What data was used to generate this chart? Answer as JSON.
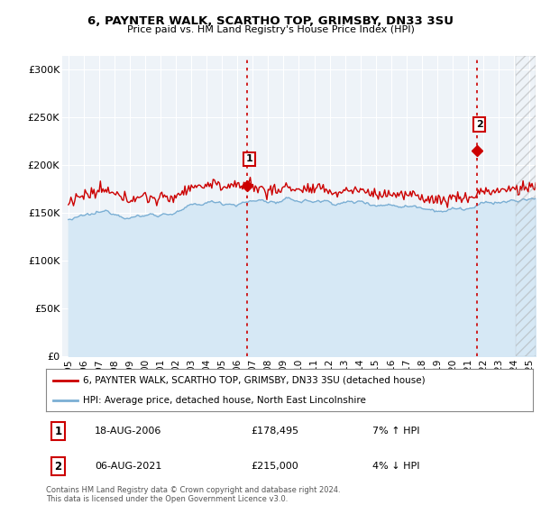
{
  "title_line1": "6, PAYNTER WALK, SCARTHO TOP, GRIMSBY, DN33 3SU",
  "title_line2": "Price paid vs. HM Land Registry's House Price Index (HPI)",
  "ylabel_ticks": [
    "£0",
    "£50K",
    "£100K",
    "£150K",
    "£200K",
    "£250K",
    "£300K"
  ],
  "ytick_values": [
    0,
    50000,
    100000,
    150000,
    200000,
    250000,
    300000
  ],
  "ylim": [
    0,
    315000
  ],
  "x_start_year": 1995,
  "x_end_year": 2025,
  "xlim_left": 1994.6,
  "xlim_right": 2025.4,
  "point1_x": 2006.63,
  "point1_y": 178495,
  "point1_label": "1",
  "point1_date": "18-AUG-2006",
  "point1_price": "£178,495",
  "point1_hpi": "7% ↑ HPI",
  "point2_x": 2021.59,
  "point2_y": 215000,
  "point2_label": "2",
  "point2_date": "06-AUG-2021",
  "point2_price": "£215,000",
  "point2_hpi": "4% ↓ HPI",
  "hatch_start": 2024.0,
  "legend_line1": "6, PAYNTER WALK, SCARTHO TOP, GRIMSBY, DN33 3SU (detached house)",
  "legend_line2": "HPI: Average price, detached house, North East Lincolnshire",
  "footer": "Contains HM Land Registry data © Crown copyright and database right 2024.\nThis data is licensed under the Open Government Licence v3.0.",
  "house_color": "#cc0000",
  "hpi_color": "#7bafd4",
  "hpi_fill_color": "#d6e8f5",
  "vline_color": "#cc0000",
  "bg_color": "#ffffff",
  "plot_bg_color": "#eef3f8"
}
